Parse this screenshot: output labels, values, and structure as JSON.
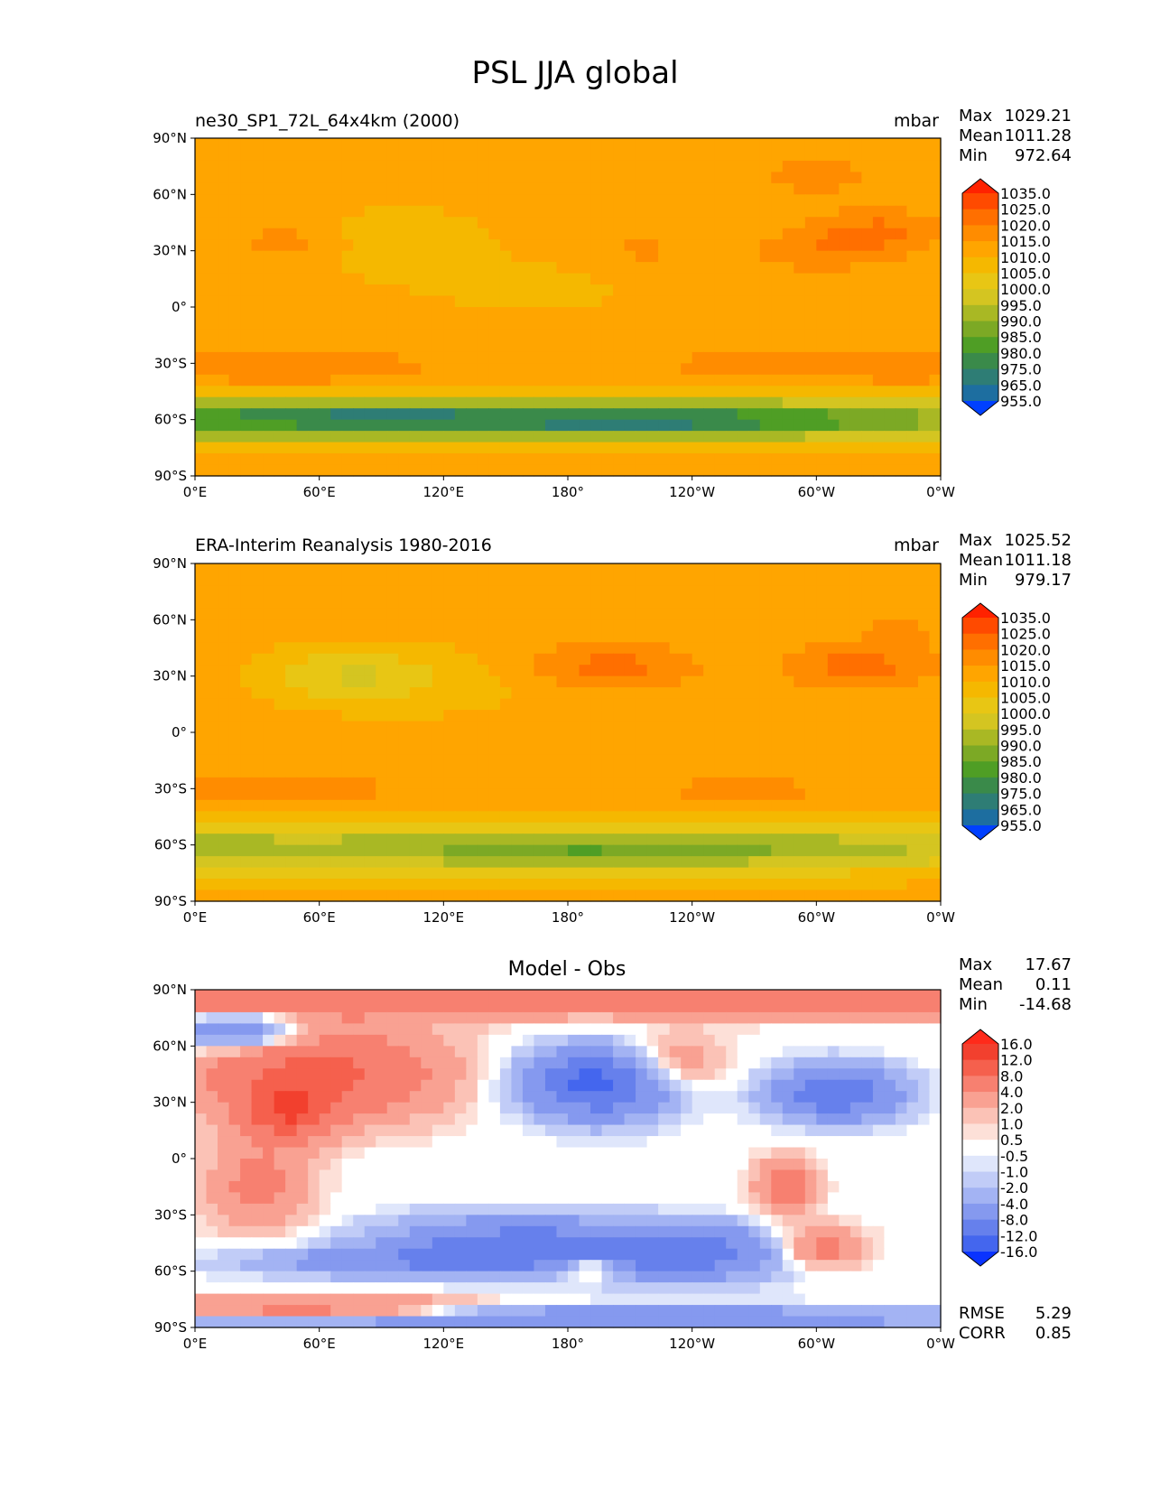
{
  "figure": {
    "title": "PSL JJA global"
  },
  "chart_data": [
    {
      "type": "heatmap",
      "panel_title": "ne30_SP1_72L_64x4km (2000)",
      "units": "mbar",
      "stats": {
        "max_label": "Max",
        "max": "1029.21",
        "mean_label": "Mean",
        "mean": "1011.28",
        "min_label": "Min",
        "min": "972.64"
      },
      "colorbar": {
        "levels": [
          "1035.0",
          "1025.0",
          "1020.0",
          "1015.0",
          "1010.0",
          "1005.0",
          "1000.0",
          "995.0",
          "990.0",
          "985.0",
          "980.0",
          "975.0",
          "965.0",
          "955.0"
        ],
        "colors": [
          "#ff2200",
          "#ff4a00",
          "#ff6f00",
          "#ff8c00",
          "#ffa500",
          "#f5b800",
          "#e8c614",
          "#d4c521",
          "#a9b824",
          "#7ca925",
          "#4f9e25",
          "#3a8a4a",
          "#2e7d75",
          "#1d6ea0",
          "#0f60d0",
          "#0040ff"
        ]
      },
      "field": "model",
      "xlabel": "",
      "ylabel": "",
      "xticks": [
        "0°E",
        "60°E",
        "120°E",
        "180°",
        "120°W",
        "60°W",
        "0°W"
      ],
      "yticks": [
        "90°N",
        "60°N",
        "30°N",
        "0°",
        "30°S",
        "60°S",
        "90°S"
      ]
    },
    {
      "type": "heatmap",
      "panel_title": "ERA-Interim Reanalysis 1980-2016",
      "units": "mbar",
      "stats": {
        "max_label": "Max",
        "max": "1025.52",
        "mean_label": "Mean",
        "mean": "1011.18",
        "min_label": "Min",
        "min": "979.17"
      },
      "colorbar": {
        "levels": [
          "1035.0",
          "1025.0",
          "1020.0",
          "1015.0",
          "1010.0",
          "1005.0",
          "1000.0",
          "995.0",
          "990.0",
          "985.0",
          "980.0",
          "975.0",
          "965.0",
          "955.0"
        ],
        "colors": [
          "#ff2200",
          "#ff4a00",
          "#ff6f00",
          "#ff8c00",
          "#ffa500",
          "#f5b800",
          "#e8c614",
          "#d4c521",
          "#a9b824",
          "#7ca925",
          "#4f9e25",
          "#3a8a4a",
          "#2e7d75",
          "#1d6ea0",
          "#0f60d0",
          "#0040ff"
        ]
      },
      "field": "obs",
      "xlabel": "",
      "ylabel": "",
      "xticks": [
        "0°E",
        "60°E",
        "120°E",
        "180°",
        "120°W",
        "60°W",
        "0°W"
      ],
      "yticks": [
        "90°N",
        "60°N",
        "30°N",
        "0°",
        "30°S",
        "60°S",
        "90°S"
      ]
    },
    {
      "type": "heatmap",
      "panel_title": "Model - Obs",
      "units": "",
      "stats": {
        "max_label": "Max",
        "max": "17.67",
        "mean_label": "Mean",
        "mean": "0.11",
        "min_label": "Min",
        "min": "-14.68"
      },
      "extra_stats": {
        "rmse_label": "RMSE",
        "rmse": "5.29",
        "corr_label": "CORR",
        "corr": "0.85"
      },
      "colorbar": {
        "levels": [
          "16.0",
          "12.0",
          "8.0",
          "4.0",
          "2.0",
          "1.0",
          "0.5",
          "-0.5",
          "-1.0",
          "-2.0",
          "-4.0",
          "-8.0",
          "-12.0",
          "-16.0"
        ],
        "colors": [
          "#ff2a1a",
          "#f2402e",
          "#f5604d",
          "#f78070",
          "#f9a192",
          "#fbc2b6",
          "#fde0d8",
          "#ffffff",
          "#dfe6fb",
          "#c1ccf7",
          "#a3b3f3",
          "#8599ef",
          "#6680ec",
          "#4466ee",
          "#2a50f3",
          "#0a33ff"
        ]
      },
      "field": "diff",
      "xlabel": "",
      "ylabel": "",
      "xticks": [
        "0°E",
        "60°E",
        "120°E",
        "180°",
        "120°W",
        "60°W",
        "0°W"
      ],
      "yticks": [
        "90°N",
        "60°N",
        "30°N",
        "0°",
        "30°S",
        "60°S",
        "90°S"
      ]
    }
  ]
}
